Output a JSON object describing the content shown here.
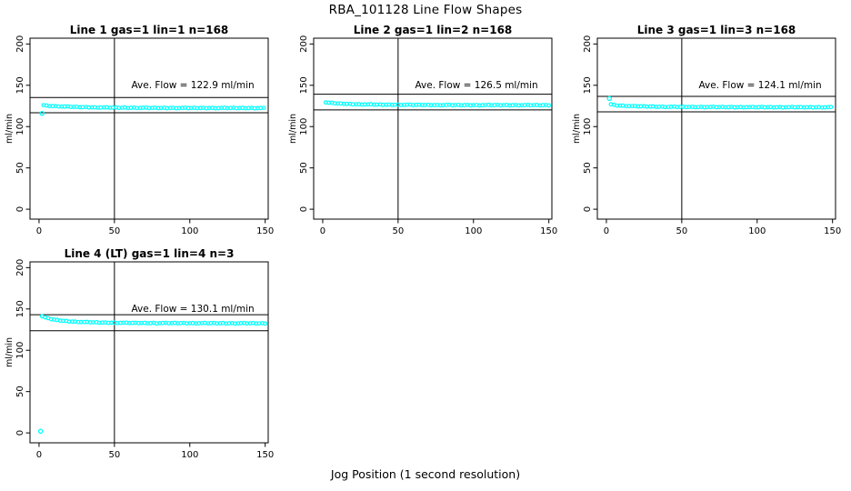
{
  "figure_title": "RBA_101128  Line Flow Shapes",
  "x_axis_title": "Jog Position (1 second resolution)",
  "colors": {
    "points": "#00ffff",
    "axis": "#000000",
    "background": "#ffffff"
  },
  "chart_data": [
    {
      "type": "scatter",
      "title": "Line 1 gas=1 lin=1 n=168",
      "ylabel": "ml/min",
      "annotation": "Ave. Flow =  122.9  ml/min",
      "ave_flow": 122.9,
      "xlim": [
        -6,
        152
      ],
      "ylim": [
        -12,
        207
      ],
      "xticks": [
        0,
        50,
        100,
        150
      ],
      "yticks": [
        0,
        50,
        100,
        150,
        200
      ],
      "vline_x": 50,
      "hlines": [
        135.2,
        116.8
      ],
      "point_step": 2,
      "band_anchors": [
        [
          3,
          126.0
        ],
        [
          6,
          125.1
        ],
        [
          10,
          124.8
        ],
        [
          15,
          124.3
        ],
        [
          20,
          124.0
        ],
        [
          25,
          123.7
        ],
        [
          30,
          123.5
        ],
        [
          40,
          123.1
        ],
        [
          50,
          122.9
        ],
        [
          60,
          122.8
        ],
        [
          75,
          122.6
        ],
        [
          100,
          122.5
        ],
        [
          125,
          122.5
        ],
        [
          150,
          122.4
        ]
      ],
      "outlier_points": [
        [
          2,
          116
        ]
      ]
    },
    {
      "type": "scatter",
      "title": "Line 2 gas=1 lin=2 n=168",
      "ylabel": "ml/min",
      "annotation": "Ave. Flow =  126.5  ml/min",
      "ave_flow": 126.5,
      "xlim": [
        -6,
        152
      ],
      "ylim": [
        -12,
        207
      ],
      "xticks": [
        0,
        50,
        100,
        150
      ],
      "yticks": [
        0,
        50,
        100,
        150,
        200
      ],
      "vline_x": 50,
      "hlines": [
        139.2,
        120.2
      ],
      "point_step": 2,
      "band_anchors": [
        [
          2,
          129.3
        ],
        [
          5,
          128.6
        ],
        [
          10,
          128.0
        ],
        [
          15,
          127.5
        ],
        [
          20,
          127.2
        ],
        [
          30,
          126.8
        ],
        [
          40,
          126.5
        ],
        [
          50,
          126.4
        ],
        [
          60,
          126.3
        ],
        [
          75,
          126.1
        ],
        [
          100,
          126.0
        ],
        [
          125,
          126.0
        ],
        [
          150,
          125.9
        ]
      ],
      "outlier_points": []
    },
    {
      "type": "scatter",
      "title": "Line 3 gas=1 lin=3 n=168",
      "ylabel": "ml/min",
      "annotation": "Ave. Flow =  124.1  ml/min",
      "ave_flow": 124.1,
      "xlim": [
        -6,
        152
      ],
      "ylim": [
        -12,
        207
      ],
      "xticks": [
        0,
        50,
        100,
        150
      ],
      "yticks": [
        0,
        50,
        100,
        150,
        200
      ],
      "vline_x": 50,
      "hlines": [
        136.5,
        117.9
      ],
      "point_step": 2,
      "band_anchors": [
        [
          3,
          127.0
        ],
        [
          6,
          125.8
        ],
        [
          10,
          125.3
        ],
        [
          15,
          124.9
        ],
        [
          20,
          124.6
        ],
        [
          30,
          124.2
        ],
        [
          40,
          123.9
        ],
        [
          50,
          123.8
        ],
        [
          60,
          123.7
        ],
        [
          75,
          123.6
        ],
        [
          100,
          123.5
        ],
        [
          125,
          123.4
        ],
        [
          150,
          123.4
        ]
      ],
      "outlier_points": [
        [
          2,
          134
        ]
      ]
    },
    {
      "type": "scatter",
      "title": "Line 4 (LT) gas=1 lin=4 n=3",
      "ylabel": "ml/min",
      "annotation": "Ave. Flow =  130.1  ml/min",
      "ave_flow": 130.1,
      "xlim": [
        -6,
        152
      ],
      "ylim": [
        -12,
        207
      ],
      "xticks": [
        0,
        50,
        100,
        150
      ],
      "yticks": [
        0,
        50,
        100,
        150,
        200
      ],
      "vline_x": 50,
      "hlines": [
        143.1,
        123.6
      ],
      "point_step": 2,
      "band_anchors": [
        [
          2,
          141.3
        ],
        [
          4,
          139.8
        ],
        [
          6,
          138.6
        ],
        [
          8,
          137.7
        ],
        [
          10,
          137.0
        ],
        [
          15,
          135.8
        ],
        [
          20,
          135.0
        ],
        [
          25,
          134.5
        ],
        [
          30,
          134.1
        ],
        [
          40,
          133.6
        ],
        [
          50,
          133.3
        ],
        [
          60,
          133.1
        ],
        [
          75,
          132.9
        ],
        [
          100,
          132.8
        ],
        [
          125,
          132.7
        ],
        [
          150,
          132.6
        ]
      ],
      "outlier_points": [
        [
          1,
          2
        ]
      ]
    }
  ]
}
